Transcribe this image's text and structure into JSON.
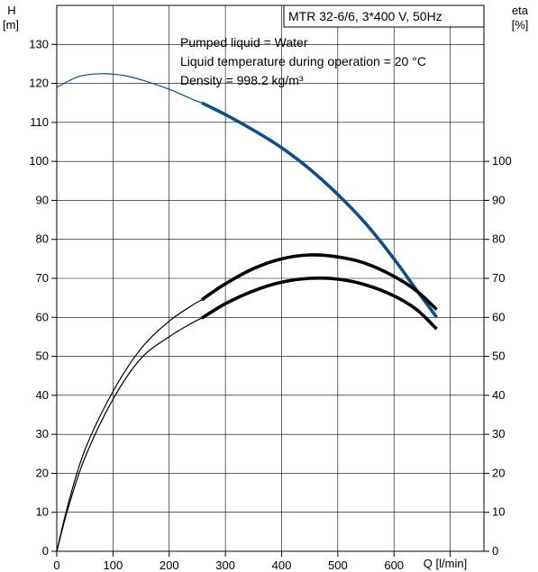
{
  "chart_data": {
    "type": "line",
    "title_box": "MTR 32-6/6, 3*400 V, 50Hz",
    "annotations": [
      "Pumped liquid = Water",
      "Liquid temperature during operation = 20 °C",
      "Density = 998.2 kg/m³"
    ],
    "left_axis": {
      "label": "H",
      "unit": "[m]",
      "ylim": [
        0,
        140
      ],
      "ticks": [
        0,
        10,
        20,
        30,
        40,
        50,
        60,
        70,
        80,
        90,
        100,
        110,
        120,
        130
      ]
    },
    "right_axis": {
      "label": "eta",
      "unit": "[%]",
      "ylim": [
        0,
        140
      ],
      "ticks": [
        0,
        10,
        20,
        30,
        40,
        50,
        60,
        70,
        80,
        90,
        100
      ]
    },
    "x_axis": {
      "label": "Q [l/min]",
      "xlim": [
        0,
        760
      ],
      "ticks": [
        0,
        100,
        200,
        300,
        400,
        500,
        600
      ]
    },
    "grid": true,
    "colors": {
      "head": "#0a4f8c",
      "efficiency": "#000000",
      "grid": "#000000"
    },
    "series": [
      {
        "role": "head",
        "color": "#0a4f8c",
        "thin": {
          "x": [
            0,
            40,
            80,
            120,
            160,
            200,
            240,
            258
          ],
          "y": [
            119,
            121.8,
            122.5,
            122,
            120.5,
            118.5,
            116,
            115
          ]
        },
        "thick": {
          "x": [
            258,
            300,
            350,
            400,
            450,
            500,
            550,
            600,
            640,
            676
          ],
          "y": [
            115,
            112,
            108,
            103.5,
            98,
            91.5,
            84,
            75,
            67,
            60
          ]
        }
      },
      {
        "role": "efficiency-upper",
        "color": "#000000",
        "thin": {
          "x": [
            0,
            20,
            50,
            100,
            150,
            200,
            240,
            258
          ],
          "y": [
            0,
            12,
            26,
            41,
            52,
            59,
            63,
            64.5
          ]
        },
        "thick": {
          "x": [
            258,
            300,
            350,
            400,
            450,
            500,
            550,
            600,
            640,
            676
          ],
          "y": [
            64.5,
            68.6,
            72.5,
            75,
            76,
            75.5,
            73.8,
            70.5,
            66.8,
            62
          ]
        }
      },
      {
        "role": "efficiency-lower",
        "color": "#000000",
        "thin": {
          "x": [
            0,
            20,
            50,
            100,
            150,
            200,
            240,
            258
          ],
          "y": [
            0,
            11,
            24,
            39,
            49.5,
            55,
            58.5,
            59.8
          ]
        },
        "thick": {
          "x": [
            258,
            300,
            350,
            400,
            450,
            500,
            550,
            600,
            640,
            676
          ],
          "y": [
            59.8,
            63.5,
            66.8,
            69,
            70,
            69.8,
            68.3,
            65.5,
            62,
            57
          ]
        }
      }
    ]
  }
}
